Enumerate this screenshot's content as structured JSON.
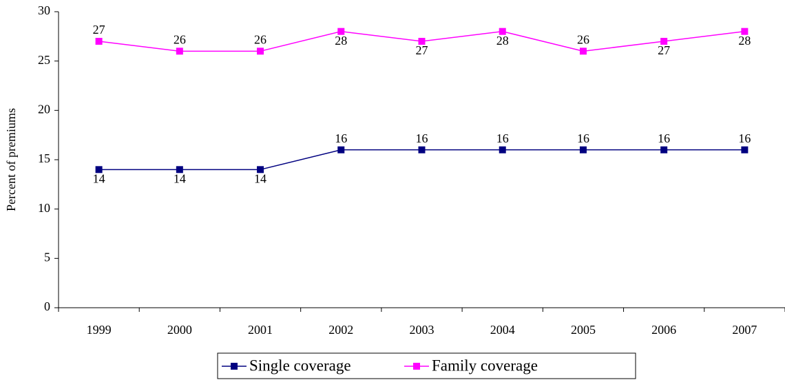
{
  "chart_data": {
    "type": "line",
    "y_label": "Percent of premiums",
    "categories": [
      "1999",
      "2000",
      "2001",
      "2002",
      "2003",
      "2004",
      "2005",
      "2006",
      "2007"
    ],
    "series": [
      {
        "name": "Single coverage",
        "color": "#000080",
        "values": [
          14,
          14,
          14,
          16,
          16,
          16,
          16,
          16,
          16
        ]
      },
      {
        "name": "Family coverage",
        "color": "#ff00ff",
        "values": [
          27,
          26,
          26,
          28,
          27,
          28,
          26,
          27,
          28
        ]
      }
    ],
    "ylim": [
      0,
      30
    ],
    "yticks": [
      0,
      5,
      10,
      15,
      20,
      25,
      30
    ],
    "grid": false,
    "legend": "bottom"
  }
}
